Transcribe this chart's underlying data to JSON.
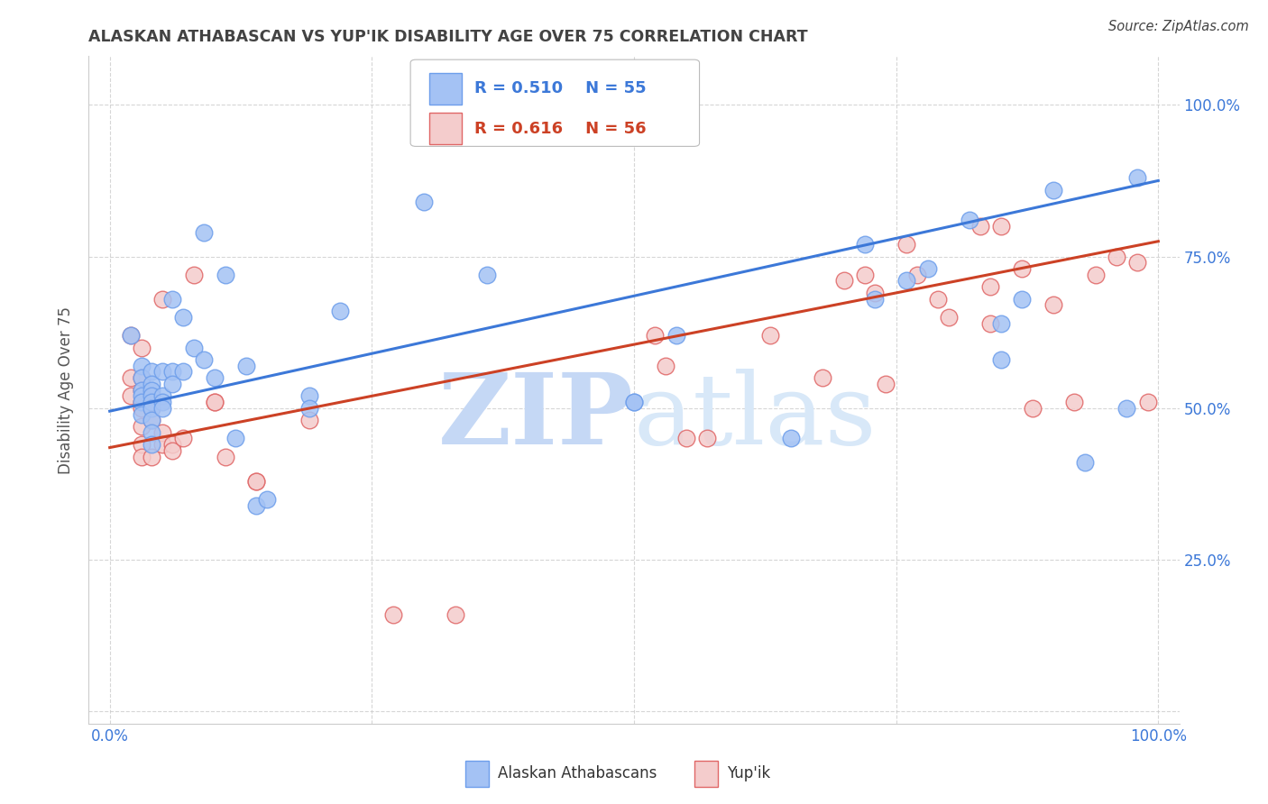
{
  "title": "ALASKAN ATHABASCAN VS YUP'IK DISABILITY AGE OVER 75 CORRELATION CHART",
  "source": "Source: ZipAtlas.com",
  "ylabel": "Disability Age Over 75",
  "xlim": [
    -0.02,
    1.02
  ],
  "ylim": [
    -0.02,
    1.08
  ],
  "xticks": [
    0.0,
    0.25,
    0.5,
    0.75,
    1.0
  ],
  "yticks": [
    0.0,
    0.25,
    0.5,
    0.75,
    1.0
  ],
  "xticklabels": [
    "0.0%",
    "",
    "",
    "",
    "100.0%"
  ],
  "right_yticklabels": [
    "",
    "25.0%",
    "50.0%",
    "75.0%",
    "100.0%"
  ],
  "legend_r_blue": "R = 0.510",
  "legend_n_blue": "N = 55",
  "legend_r_pink": "R = 0.616",
  "legend_n_pink": "N = 56",
  "legend_labels": [
    "Alaskan Athabascans",
    "Yup'ik"
  ],
  "blue_fill": "#a4c2f4",
  "pink_fill": "#f4cccc",
  "blue_edge": "#6d9eeb",
  "pink_edge": "#e06666",
  "line_blue": "#3c78d8",
  "line_pink": "#cc4125",
  "tick_color": "#3c78d8",
  "grid_color": "#cccccc",
  "watermark_color": "#d0e0f8",
  "title_color": "#434343",
  "source_color": "#434343",
  "blue_scatter": [
    [
      0.02,
      0.62
    ],
    [
      0.03,
      0.57
    ],
    [
      0.03,
      0.55
    ],
    [
      0.03,
      0.53
    ],
    [
      0.03,
      0.52
    ],
    [
      0.03,
      0.51
    ],
    [
      0.03,
      0.49
    ],
    [
      0.04,
      0.56
    ],
    [
      0.04,
      0.54
    ],
    [
      0.04,
      0.53
    ],
    [
      0.04,
      0.52
    ],
    [
      0.04,
      0.51
    ],
    [
      0.04,
      0.5
    ],
    [
      0.04,
      0.48
    ],
    [
      0.04,
      0.46
    ],
    [
      0.04,
      0.44
    ],
    [
      0.05,
      0.56
    ],
    [
      0.05,
      0.52
    ],
    [
      0.05,
      0.51
    ],
    [
      0.05,
      0.5
    ],
    [
      0.06,
      0.68
    ],
    [
      0.06,
      0.56
    ],
    [
      0.06,
      0.54
    ],
    [
      0.07,
      0.65
    ],
    [
      0.07,
      0.56
    ],
    [
      0.08,
      0.6
    ],
    [
      0.09,
      0.79
    ],
    [
      0.09,
      0.58
    ],
    [
      0.1,
      0.55
    ],
    [
      0.11,
      0.72
    ],
    [
      0.12,
      0.45
    ],
    [
      0.13,
      0.57
    ],
    [
      0.14,
      0.34
    ],
    [
      0.15,
      0.35
    ],
    [
      0.19,
      0.52
    ],
    [
      0.19,
      0.5
    ],
    [
      0.22,
      0.66
    ],
    [
      0.3,
      0.84
    ],
    [
      0.36,
      0.72
    ],
    [
      0.5,
      0.51
    ],
    [
      0.5,
      0.51
    ],
    [
      0.54,
      0.62
    ],
    [
      0.65,
      0.45
    ],
    [
      0.72,
      0.77
    ],
    [
      0.73,
      0.68
    ],
    [
      0.76,
      0.71
    ],
    [
      0.78,
      0.73
    ],
    [
      0.82,
      0.81
    ],
    [
      0.85,
      0.58
    ],
    [
      0.85,
      0.64
    ],
    [
      0.87,
      0.68
    ],
    [
      0.9,
      0.86
    ],
    [
      0.93,
      0.41
    ],
    [
      0.97,
      0.5
    ],
    [
      0.98,
      0.88
    ]
  ],
  "pink_scatter": [
    [
      0.02,
      0.62
    ],
    [
      0.02,
      0.55
    ],
    [
      0.02,
      0.52
    ],
    [
      0.03,
      0.6
    ],
    [
      0.03,
      0.55
    ],
    [
      0.03,
      0.53
    ],
    [
      0.03,
      0.51
    ],
    [
      0.03,
      0.5
    ],
    [
      0.03,
      0.47
    ],
    [
      0.03,
      0.44
    ],
    [
      0.03,
      0.42
    ],
    [
      0.04,
      0.52
    ],
    [
      0.04,
      0.5
    ],
    [
      0.04,
      0.48
    ],
    [
      0.04,
      0.42
    ],
    [
      0.05,
      0.68
    ],
    [
      0.05,
      0.46
    ],
    [
      0.05,
      0.44
    ],
    [
      0.06,
      0.44
    ],
    [
      0.06,
      0.43
    ],
    [
      0.07,
      0.45
    ],
    [
      0.08,
      0.72
    ],
    [
      0.1,
      0.51
    ],
    [
      0.1,
      0.51
    ],
    [
      0.11,
      0.42
    ],
    [
      0.14,
      0.38
    ],
    [
      0.14,
      0.38
    ],
    [
      0.19,
      0.48
    ],
    [
      0.27,
      0.16
    ],
    [
      0.33,
      0.16
    ],
    [
      0.52,
      0.62
    ],
    [
      0.53,
      0.57
    ],
    [
      0.55,
      0.45
    ],
    [
      0.57,
      0.45
    ],
    [
      0.63,
      0.62
    ],
    [
      0.68,
      0.55
    ],
    [
      0.7,
      0.71
    ],
    [
      0.72,
      0.72
    ],
    [
      0.73,
      0.69
    ],
    [
      0.74,
      0.54
    ],
    [
      0.76,
      0.77
    ],
    [
      0.77,
      0.72
    ],
    [
      0.79,
      0.68
    ],
    [
      0.8,
      0.65
    ],
    [
      0.83,
      0.8
    ],
    [
      0.84,
      0.7
    ],
    [
      0.84,
      0.64
    ],
    [
      0.85,
      0.8
    ],
    [
      0.87,
      0.73
    ],
    [
      0.88,
      0.5
    ],
    [
      0.9,
      0.67
    ],
    [
      0.92,
      0.51
    ],
    [
      0.94,
      0.72
    ],
    [
      0.96,
      0.75
    ],
    [
      0.98,
      0.74
    ],
    [
      0.99,
      0.51
    ]
  ],
  "blue_line_x": [
    0.0,
    1.0
  ],
  "blue_line_y": [
    0.495,
    0.875
  ],
  "pink_line_x": [
    0.0,
    1.0
  ],
  "pink_line_y": [
    0.435,
    0.775
  ]
}
